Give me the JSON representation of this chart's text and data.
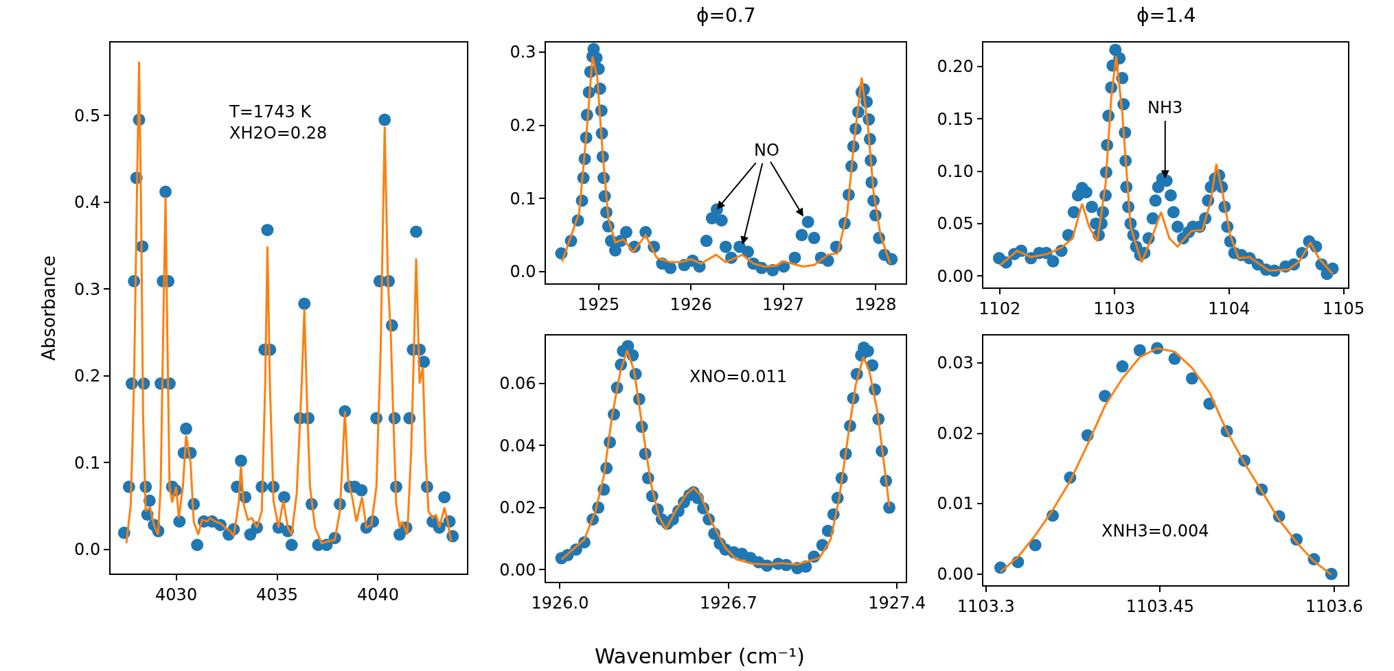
{
  "chart_data": [
    {
      "type": "scatter",
      "ylabel": "Absorbance",
      "xlim": [
        4026.74,
        4044.41
      ],
      "xticks": [
        4030,
        4035,
        4040
      ],
      "ylim": [
        -0.028,
        0.584
      ],
      "yticks": [
        {
          "value": 0,
          "label": "0.0"
        },
        0.1,
        0.2,
        0.3,
        0.4,
        0.5
      ],
      "annotations": [
        "T=1743 K\nXH2O=0.28"
      ],
      "series": [
        {
          "marker": "circle",
          "color": "#1f77b4",
          "x": [
            4027.42,
            4027.66,
            4027.8,
            4027.91,
            4028.03,
            4028.16,
            4028.32,
            4028.4,
            4028.49,
            4028.57,
            4028.68,
            4028.9,
            4029.11,
            4029.23,
            4029.34,
            4029.47,
            4029.61,
            4029.67,
            4029.8,
            4029.97,
            4030.16,
            4030.38,
            4030.49,
            4030.71,
            4030.87,
            4031.04,
            4031.37,
            4031.78,
            4032.19,
            4032.6,
            4032.85,
            4033.01,
            4033.21,
            4033.42,
            4033.67,
            4034.0,
            4034.24,
            4034.38,
            4034.52,
            4034.65,
            4034.82,
            4035.07,
            4035.35,
            4035.53,
            4035.72,
            4036.13,
            4036.35,
            4036.55,
            4036.71,
            4037.04,
            4037.45,
            4037.86,
            4038.11,
            4038.36,
            4038.6,
            4038.85,
            4039.18,
            4039.42,
            4039.75,
            4039.92,
            4040.08,
            4040.33,
            4040.53,
            4040.69,
            4040.82,
            4040.9,
            4041.07,
            4041.4,
            4041.56,
            4041.73,
            4041.89,
            4042.06,
            4042.27,
            4042.43,
            4042.71,
            4043.04,
            4043.29,
            4043.54,
            4043.7
          ],
          "values": [
            0.019,
            0.072,
            0.191,
            0.309,
            0.428,
            0.495,
            0.349,
            0.191,
            0.072,
            0.04,
            0.056,
            0.028,
            0.021,
            0.191,
            0.309,
            0.412,
            0.309,
            0.191,
            0.072,
            0.068,
            0.032,
            0.111,
            0.139,
            0.111,
            0.052,
            0.005,
            0.032,
            0.032,
            0.028,
            0.017,
            0.023,
            0.072,
            0.102,
            0.06,
            0.017,
            0.025,
            0.072,
            0.23,
            0.368,
            0.23,
            0.072,
            0.025,
            0.06,
            0.021,
            0.005,
            0.151,
            0.283,
            0.151,
            0.052,
            0.005,
            0.005,
            0.013,
            0.052,
            0.159,
            0.072,
            0.072,
            0.068,
            0.025,
            0.032,
            0.151,
            0.309,
            0.495,
            0.309,
            0.258,
            0.151,
            0.072,
            0.017,
            0.025,
            0.151,
            0.23,
            0.366,
            0.23,
            0.216,
            0.072,
            0.032,
            0.025,
            0.06,
            0.032,
            0.015
          ]
        },
        {
          "type": "line",
          "color": "#ff7f0e",
          "x": [
            4027.53,
            4027.75,
            4027.91,
            4028.04,
            4028.16,
            4028.26,
            4028.36,
            4028.49,
            4028.7,
            4028.9,
            4029.1,
            4029.23,
            4029.34,
            4029.47,
            4029.57,
            4029.67,
            4029.8,
            4030.0,
            4030.13,
            4030.33,
            4030.49,
            4030.71,
            4030.87,
            4031.09,
            4031.28,
            4031.53,
            4031.69,
            4031.94,
            4032.19,
            4032.43,
            4032.68,
            4032.85,
            4033.09,
            4033.21,
            4033.34,
            4033.55,
            4033.75,
            4034.0,
            4034.24,
            4034.41,
            4034.52,
            4034.64,
            4034.82,
            4035.07,
            4035.31,
            4035.53,
            4035.72,
            4035.97,
            4036.22,
            4036.35,
            4036.48,
            4036.63,
            4036.88,
            4037.2,
            4037.53,
            4037.86,
            4038.11,
            4038.22,
            4038.36,
            4038.52,
            4038.72,
            4038.93,
            4039.21,
            4039.42,
            4039.67,
            4039.92,
            4040.13,
            4040.33,
            4040.49,
            4040.63,
            4040.76,
            4040.9,
            4041.07,
            4041.2,
            4041.45,
            4041.64,
            4041.78,
            4041.89,
            4042.06,
            4042.22,
            4042.35,
            4042.5,
            4042.71,
            4042.88,
            4043.04,
            4043.29,
            4043.45,
            4043.62
          ],
          "values": [
            0.007,
            0.052,
            0.191,
            0.388,
            0.562,
            0.388,
            0.151,
            0.044,
            0.048,
            0.028,
            0.017,
            0.072,
            0.23,
            0.406,
            0.23,
            0.072,
            0.054,
            0.072,
            0.036,
            0.072,
            0.131,
            0.1,
            0.032,
            0.017,
            0.034,
            0.032,
            0.036,
            0.032,
            0.03,
            0.025,
            0.021,
            0.015,
            0.052,
            0.096,
            0.052,
            0.034,
            0.036,
            0.025,
            0.044,
            0.191,
            0.349,
            0.191,
            0.056,
            0.025,
            0.056,
            0.025,
            0.017,
            0.064,
            0.191,
            0.277,
            0.171,
            0.072,
            0.025,
            0.007,
            0.009,
            0.011,
            0.044,
            0.092,
            0.159,
            0.08,
            0.06,
            0.032,
            0.06,
            0.025,
            0.028,
            0.072,
            0.23,
            0.487,
            0.309,
            0.25,
            0.151,
            0.052,
            0.025,
            0.032,
            0.017,
            0.111,
            0.23,
            0.335,
            0.191,
            0.21,
            0.111,
            0.044,
            0.036,
            0.04,
            0.025,
            0.048,
            0.032,
            0.009
          ]
        }
      ]
    },
    {
      "type": "scatter",
      "title": "ϕ=0.7",
      "xlim": [
        1924.43,
        1928.33
      ],
      "xticks": [
        1925,
        1926,
        1927,
        1928
      ],
      "ylim": [
        -0.016,
        0.313
      ],
      "yticks": [
        {
          "value": 0,
          "label": "0.0"
        },
        0.1,
        0.2,
        0.3
      ],
      "annotations": [
        {
          "text": "NO",
          "x": 1926.281,
          "y": 0.085
        }
      ],
      "series": [
        {
          "marker": "circle",
          "color": "#1f77b4",
          "x": [
            1924.596,
            1924.701,
            1924.775,
            1924.82,
            1924.835,
            1924.85,
            1924.865,
            1924.874,
            1924.895,
            1924.91,
            1924.934,
            1924.946,
            1924.976,
            1925.0,
            1925.015,
            1925.03,
            1925.036,
            1925.045,
            1925.054,
            1925.066,
            1925.084,
            1925.105,
            1925.135,
            1925.18,
            1925.24,
            1925.299,
            1925.389,
            1925.509,
            1925.599,
            1925.689,
            1925.778,
            1925.928,
            1926.018,
            1926.093,
            1926.168,
            1926.228,
            1926.281,
            1926.332,
            1926.377,
            1926.437,
            1926.527,
            1926.617,
            1926.677,
            1926.766,
            1926.886,
            1927.006,
            1927.126,
            1927.201,
            1927.269,
            1927.335,
            1927.41,
            1927.485,
            1927.575,
            1927.665,
            1927.71,
            1927.74,
            1927.76,
            1927.784,
            1927.814,
            1927.85,
            1927.874,
            1927.904,
            1927.928,
            1927.94,
            1927.949,
            1927.958,
            1927.979,
            1928.0,
            1928.039,
            1928.099,
            1928.174
          ],
          "values": [
            0.025,
            0.042,
            0.07,
            0.097,
            0.128,
            0.154,
            0.183,
            0.214,
            0.245,
            0.273,
            0.294,
            0.304,
            0.292,
            0.277,
            0.25,
            0.22,
            0.189,
            0.157,
            0.128,
            0.103,
            0.081,
            0.062,
            0.042,
            0.029,
            0.042,
            0.054,
            0.034,
            0.054,
            0.034,
            0.011,
            0.005,
            0.009,
            0.015,
            0.007,
            0.042,
            0.073,
            0.085,
            0.07,
            0.034,
            0.019,
            0.034,
            0.027,
            0.011,
            0.005,
            0.002,
            0.007,
            0.019,
            0.05,
            0.068,
            0.046,
            0.019,
            0.015,
            0.034,
            0.066,
            0.105,
            0.144,
            0.171,
            0.195,
            0.218,
            0.245,
            0.249,
            0.232,
            0.208,
            0.181,
            0.152,
            0.122,
            0.097,
            0.077,
            0.046,
            0.023,
            0.017
          ]
        },
        {
          "type": "line",
          "color": "#ff7f0e",
          "x": [
            1924.605,
            1924.79,
            1924.88,
            1924.934,
            1924.985,
            1925.045,
            1925.105,
            1925.18,
            1925.269,
            1925.374,
            1925.509,
            1925.629,
            1925.778,
            1925.898,
            1926.003,
            1926.108,
            1926.272,
            1926.377,
            1926.557,
            1926.677,
            1926.796,
            1926.916,
            1927.006,
            1927.096,
            1927.216,
            1927.335,
            1927.485,
            1927.59,
            1927.695,
            1927.769,
            1927.85,
            1927.919,
            1927.979,
            1928.054,
            1928.159
          ],
          "values": [
            0.014,
            0.081,
            0.206,
            0.294,
            0.265,
            0.159,
            0.073,
            0.04,
            0.044,
            0.027,
            0.05,
            0.019,
            0.013,
            0.013,
            0.017,
            0.011,
            0.023,
            0.013,
            0.023,
            0.011,
            0.007,
            0.008,
            0.014,
            0.011,
            0.007,
            0.009,
            0.023,
            0.025,
            0.081,
            0.179,
            0.265,
            0.198,
            0.109,
            0.05,
            0.011
          ]
        }
      ]
    },
    {
      "type": "scatter",
      "title": "ϕ=1.4",
      "xlim": [
        1101.86,
        1105.04
      ],
      "xticks": [
        1102,
        1103,
        1104,
        1105
      ],
      "ylim": [
        -0.011,
        0.223
      ],
      "yticks": [
        {
          "value": 0,
          "label": "0.00"
        },
        0.05,
        {
          "value": 0.1,
          "label": "0.10"
        },
        0.15,
        {
          "value": 0.2,
          "label": "0.20"
        }
      ],
      "annotations": [
        {
          "text": "NH3",
          "x": 1103.443,
          "y": 0.093
        }
      ],
      "series": [
        {
          "marker": "circle",
          "color": "#1f77b4",
          "x": [
            1101.995,
            1102.056,
            1102.128,
            1102.188,
            1102.273,
            1102.345,
            1102.406,
            1102.466,
            1102.538,
            1102.599,
            1102.647,
            1102.683,
            1102.719,
            1102.755,
            1102.804,
            1102.84,
            1102.864,
            1102.888,
            1102.9,
            1102.924,
            1102.929,
            1102.937,
            1102.949,
            1102.973,
            1102.985,
            1103.009,
            1103.045,
            1103.069,
            1103.081,
            1103.093,
            1103.098,
            1103.105,
            1103.122,
            1103.142,
            1103.166,
            1103.19,
            1103.226,
            1103.262,
            1103.299,
            1103.335,
            1103.359,
            1103.383,
            1103.419,
            1103.455,
            1103.492,
            1103.516,
            1103.552,
            1103.6,
            1103.649,
            1103.685,
            1103.745,
            1103.793,
            1103.818,
            1103.842,
            1103.878,
            1103.914,
            1103.938,
            1103.962,
            1103.986,
            1104.011,
            1104.047,
            1104.107,
            1104.18,
            1104.252,
            1104.324,
            1104.397,
            1104.493,
            1104.566,
            1104.638,
            1104.699,
            1104.759,
            1104.807,
            1104.855,
            1104.904
          ],
          "values": [
            0.017,
            0.013,
            0.021,
            0.024,
            0.017,
            0.022,
            0.022,
            0.014,
            0.024,
            0.039,
            0.061,
            0.077,
            0.084,
            0.08,
            0.066,
            0.05,
            0.039,
            0.05,
            0.061,
            0.077,
            0.099,
            0.125,
            0.153,
            0.18,
            0.201,
            0.216,
            0.208,
            0.189,
            0.164,
            0.137,
            0.11,
            0.085,
            0.066,
            0.05,
            0.039,
            0.028,
            0.02,
            0.022,
            0.036,
            0.055,
            0.072,
            0.085,
            0.093,
            0.091,
            0.077,
            0.061,
            0.047,
            0.036,
            0.042,
            0.047,
            0.047,
            0.055,
            0.072,
            0.085,
            0.093,
            0.096,
            0.085,
            0.066,
            0.047,
            0.033,
            0.022,
            0.02,
            0.017,
            0.011,
            0.006,
            0.005,
            0.009,
            0.011,
            0.022,
            0.033,
            0.028,
            0.011,
            0.002,
            0.007
          ]
        },
        {
          "type": "line",
          "color": "#ff7f0e",
          "x": [
            1102.0,
            1102.152,
            1102.273,
            1102.418,
            1102.538,
            1102.635,
            1102.719,
            1102.78,
            1102.852,
            1102.924,
            1102.973,
            1103.016,
            1103.069,
            1103.142,
            1103.238,
            1103.335,
            1103.407,
            1103.48,
            1103.552,
            1103.673,
            1103.769,
            1103.842,
            1103.89,
            1103.938,
            1104.011,
            1104.083,
            1104.18,
            1104.349,
            1104.518,
            1104.614,
            1104.711,
            1104.783,
            1104.904
          ],
          "values": [
            0.01,
            0.024,
            0.018,
            0.021,
            0.027,
            0.036,
            0.069,
            0.047,
            0.033,
            0.088,
            0.17,
            0.21,
            0.156,
            0.047,
            0.013,
            0.039,
            0.061,
            0.036,
            0.028,
            0.043,
            0.044,
            0.072,
            0.107,
            0.083,
            0.039,
            0.017,
            0.018,
            0.005,
            0.006,
            0.014,
            0.032,
            0.017,
            0.002
          ]
        }
      ]
    },
    {
      "type": "scatter",
      "xlabel": "Wavenumber (cm⁻¹)",
      "xlim": [
        1925.942,
        1927.437
      ],
      "xticks": [
        {
          "value": 1926,
          "label": "1926.0"
        },
        1926.7,
        1927.4
      ],
      "ylim": [
        -0.0039,
        0.0754
      ],
      "yticks": [
        {
          "value": 0,
          "label": "0.00"
        },
        0.02,
        0.04,
        0.06
      ],
      "annotations": [
        "XNO=0.011"
      ],
      "series": [
        {
          "marker": "circle",
          "color": "#1f77b4",
          "x": [
            1926.006,
            1926.032,
            1926.067,
            1926.101,
            1926.136,
            1926.159,
            1926.182,
            1926.193,
            1926.207,
            1926.224,
            1926.237,
            1926.253,
            1926.262,
            1926.282,
            1926.302,
            1926.314,
            1926.329,
            1926.34,
            1926.354,
            1926.366,
            1926.383,
            1926.406,
            1926.423,
            1926.446,
            1926.469,
            1926.492,
            1926.515,
            1926.538,
            1926.555,
            1926.572,
            1926.595,
            1926.618,
            1926.641,
            1926.664,
            1926.687,
            1926.722,
            1926.756,
            1926.791,
            1926.825,
            1926.86,
            1926.906,
            1926.94,
            1926.986,
            1927.021,
            1927.055,
            1927.09,
            1927.113,
            1927.136,
            1927.153,
            1927.17,
            1927.187,
            1927.205,
            1927.218,
            1927.233,
            1927.251,
            1927.262,
            1927.279,
            1927.297,
            1927.308,
            1927.323,
            1927.337,
            1927.354,
            1927.368
          ],
          "values": [
            0.0037,
            0.0047,
            0.0065,
            0.0088,
            0.0162,
            0.02,
            0.0258,
            0.0327,
            0.041,
            0.05,
            0.0586,
            0.066,
            0.0704,
            0.072,
            0.069,
            0.063,
            0.0549,
            0.046,
            0.0373,
            0.0295,
            0.0237,
            0.0194,
            0.0162,
            0.0148,
            0.0162,
            0.0189,
            0.0217,
            0.024,
            0.0249,
            0.0231,
            0.0198,
            0.0162,
            0.0116,
            0.0084,
            0.0065,
            0.0056,
            0.0051,
            0.0038,
            0.0024,
            0.0013,
            0.0019,
            0.0015,
            0.0005,
            0.001,
            0.0042,
            0.0079,
            0.0125,
            0.0178,
            0.0231,
            0.0295,
            0.0373,
            0.0463,
            0.0552,
            0.063,
            0.069,
            0.0715,
            0.0704,
            0.0658,
            0.058,
            0.0485,
            0.0382,
            0.0286,
            0.02
          ]
        },
        {
          "type": "line",
          "color": "#ff7f0e",
          "x": [
            1926.006,
            1926.101,
            1926.147,
            1926.182,
            1926.216,
            1926.251,
            1926.279,
            1926.308,
            1926.343,
            1926.377,
            1926.411,
            1926.44,
            1926.48,
            1926.526,
            1926.555,
            1926.584,
            1926.63,
            1926.687,
            1926.733,
            1926.802,
            1926.871,
            1926.917,
            1926.986,
            1927.078,
            1927.124,
            1927.159,
            1927.193,
            1927.228,
            1927.26,
            1927.285,
            1927.32,
            1927.368
          ],
          "values": [
            0.0033,
            0.0097,
            0.0189,
            0.03,
            0.0493,
            0.064,
            0.0706,
            0.064,
            0.0456,
            0.0281,
            0.0171,
            0.013,
            0.0189,
            0.0244,
            0.0263,
            0.024,
            0.0153,
            0.007,
            0.0033,
            0.0019,
            0.0017,
            0.0021,
            0.0017,
            0.0038,
            0.0097,
            0.0226,
            0.041,
            0.0594,
            0.0685,
            0.064,
            0.0502,
            0.0203
          ]
        }
      ]
    },
    {
      "type": "scatter",
      "xlim": [
        1103.298,
        1103.612
      ],
      "xticks": [
        1103.3,
        1103.45,
        1103.6
      ],
      "ylim": [
        -0.0016,
        0.0339
      ],
      "yticks": [
        {
          "value": 0,
          "label": "0.00"
        },
        0.01,
        0.02,
        0.03
      ],
      "annotations": [
        "XNH3=0.004"
      ],
      "series": [
        {
          "marker": "circle",
          "color": "#1f77b4",
          "x": [
            1103.3125,
            1103.3275,
            1103.3425,
            1103.3575,
            1103.3725,
            1103.3875,
            1103.4025,
            1103.4175,
            1103.4325,
            1103.4475,
            1103.4625,
            1103.4775,
            1103.4925,
            1103.5075,
            1103.5225,
            1103.5375,
            1103.5525,
            1103.5675,
            1103.5825,
            1103.5975
          ],
          "values": [
            0.0009,
            0.0017,
            0.0041,
            0.0083,
            0.0137,
            0.0197,
            0.0253,
            0.0295,
            0.0318,
            0.0321,
            0.0306,
            0.0278,
            0.0242,
            0.0203,
            0.0161,
            0.012,
            0.0082,
            0.0049,
            0.0021,
            0.0
          ]
        },
        {
          "type": "line",
          "color": "#ff7f0e",
          "x": [
            1103.3125,
            1103.3275,
            1103.3425,
            1103.3575,
            1103.3725,
            1103.3875,
            1103.4025,
            1103.4175,
            1103.4325,
            1103.4475,
            1103.4625,
            1103.4775,
            1103.4925,
            1103.5075,
            1103.5225,
            1103.5375,
            1103.5525,
            1103.5675,
            1103.5825,
            1103.5975
          ],
          "values": [
            0.0003,
            0.0024,
            0.0055,
            0.0091,
            0.0132,
            0.0184,
            0.0239,
            0.0278,
            0.0308,
            0.0321,
            0.0316,
            0.0293,
            0.0258,
            0.0203,
            0.0158,
            0.0118,
            0.0077,
            0.0045,
            0.0018,
            -0.0001
          ]
        }
      ]
    }
  ]
}
